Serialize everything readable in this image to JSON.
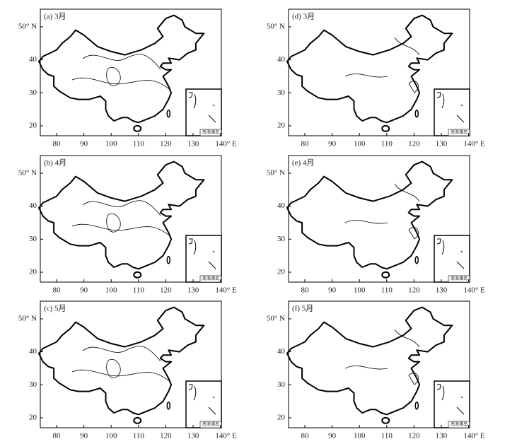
{
  "panels": [
    {
      "label": "(a) 3月"
    },
    {
      "label": "(b) 4月"
    },
    {
      "label": "(c) 5月"
    },
    {
      "label": "(d) 3月"
    },
    {
      "label": "(e) 4月"
    },
    {
      "label": "(f) 5月"
    }
  ],
  "xticks": [
    "80",
    "90",
    "100",
    "110",
    "120",
    "130",
    "140° E"
  ],
  "yticks": [
    "20",
    "30",
    "40",
    "50° N"
  ],
  "inset_label": "南海诸岛"
}
